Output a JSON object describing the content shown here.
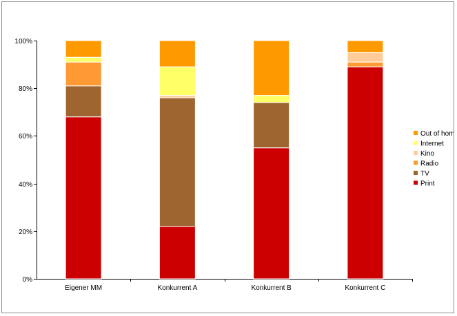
{
  "chart_data": {
    "type": "bar",
    "stacked": true,
    "normalized": true,
    "categories": [
      "Eigener MM",
      "Konkurrent A",
      "Konkurrent B",
      "Konkurrent C"
    ],
    "series": [
      {
        "name": "Print",
        "color": "#cc0000",
        "values": [
          68,
          22,
          55,
          89
        ]
      },
      {
        "name": "TV",
        "color": "#9e6531",
        "values": [
          13,
          54,
          19,
          0
        ]
      },
      {
        "name": "Radio",
        "color": "#ff9933",
        "values": [
          10,
          0,
          0,
          2
        ]
      },
      {
        "name": "Kino",
        "color": "#ffcc99",
        "values": [
          0,
          1,
          0,
          4
        ]
      },
      {
        "name": "Internet",
        "color": "#ffff66",
        "values": [
          2,
          12,
          3,
          0
        ]
      },
      {
        "name": "Out of home",
        "color": "#ff9900",
        "values": [
          7,
          11,
          23,
          5
        ]
      }
    ],
    "yticks": [
      "0%",
      "20%",
      "40%",
      "60%",
      "80%",
      "100%"
    ],
    "ylim": [
      0,
      100
    ],
    "grid": false,
    "legend_position": "right"
  }
}
